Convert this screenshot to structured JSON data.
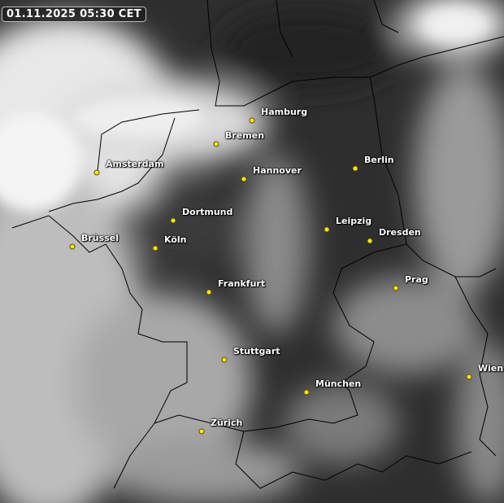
{
  "timestamp": "01.11.2025 05:30 CET",
  "colors": {
    "city_dot": "#ffeb00",
    "label": "#ffffff",
    "border": "#000000"
  },
  "cities": [
    {
      "name": "Hamburg"
    },
    {
      "name": "Bremen"
    },
    {
      "name": "Amsterdam"
    },
    {
      "name": "Hannover"
    },
    {
      "name": "Berlin"
    },
    {
      "name": "Dortmund"
    },
    {
      "name": "Leipzig"
    },
    {
      "name": "Dresden"
    },
    {
      "name": "Brüssel"
    },
    {
      "name": "Köln"
    },
    {
      "name": "Prag"
    },
    {
      "name": "Frankfurt"
    },
    {
      "name": "Stuttgart"
    },
    {
      "name": "München"
    },
    {
      "name": "Wien"
    },
    {
      "name": "Zürich"
    }
  ]
}
